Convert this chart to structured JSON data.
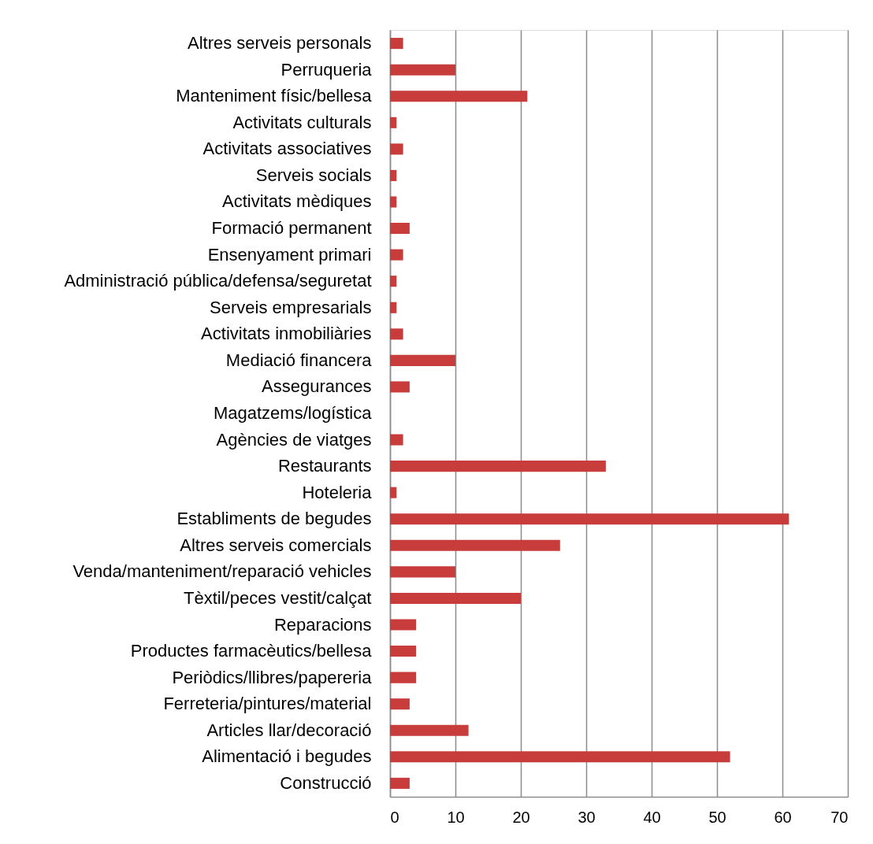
{
  "chart_data": {
    "type": "bar",
    "orientation": "horizontal",
    "categories": [
      "Altres serveis personals",
      "Perruqueria",
      "Manteniment físic/bellesa",
      "Activitats culturals",
      "Activitats associatives",
      "Serveis socials",
      "Activitats mèdiques",
      "Formació permanent",
      "Ensenyament primari",
      "Administració pública/defensa/seguretat",
      "Serveis empresarials",
      "Activitats inmobiliàries",
      "Mediació financera",
      "Assegurances",
      "Magatzems/logística",
      "Agències de viatges",
      "Restaurants",
      "Hoteleria",
      "Establiments de begudes",
      "Altres serveis comercials",
      "Venda/manteniment/reparació vehicles",
      "Tèxtil/peces vestit/calçat",
      "Reparacions",
      "Productes farmacèutics/bellesa",
      "Periòdics/llibres/papereria",
      "Ferreteria/pintures/material",
      "Articles llar/decoració",
      "Alimentació i begudes",
      "Construcció"
    ],
    "values": [
      2,
      10,
      21,
      1,
      2,
      1,
      1,
      3,
      2,
      1,
      1,
      2,
      10,
      3,
      0,
      2,
      33,
      1,
      61,
      26,
      10,
      20,
      4,
      4,
      4,
      3,
      12,
      52,
      3
    ],
    "color": "#c83c3c",
    "xlim": [
      0,
      70
    ],
    "xticks": [
      0,
      10,
      20,
      30,
      40,
      50,
      60,
      70
    ],
    "grid": "x"
  }
}
